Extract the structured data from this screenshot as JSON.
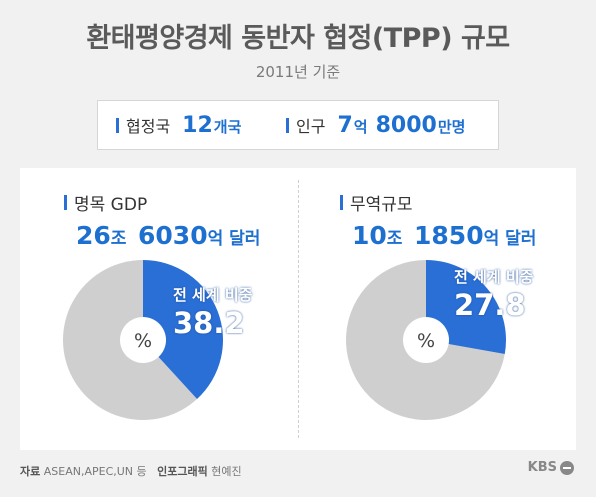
{
  "title": "환태평양경제 동반자 협정(TPP) 규모",
  "subtitle": "2011년 기준",
  "summary": {
    "members_label": "협정국",
    "members_value": "12",
    "members_unit": "개국",
    "population_label": "인구",
    "population_value1": "7",
    "population_unit1": "억",
    "population_value2": "8000",
    "population_unit2": "만명"
  },
  "footer": {
    "source_label": "자료",
    "source_value": "ASEAN,APEC,UN 등",
    "graphic_label": "인포그래픽",
    "graphic_value": "현예진"
  },
  "logo": "KBS",
  "colors": {
    "accent": "#1d6fd0",
    "share": "#2a6fd6",
    "rest": "#cfcfcf"
  },
  "chart_data": [
    {
      "type": "pie",
      "title": "명목 GDP",
      "value_num1": "26",
      "value_unit1": "조",
      "value_num2": "6030",
      "value_unit2": "억 달러",
      "share_caption": "전 세계 비중",
      "share_percent": 38.2,
      "share_text": "38.2",
      "center_label": "%",
      "slices": [
        {
          "label": "전 세계 비중",
          "value": 38.2
        },
        {
          "label": "",
          "value": 61.8
        }
      ]
    },
    {
      "type": "pie",
      "title": "무역규모",
      "value_num1": "10",
      "value_unit1": "조",
      "value_num2": "1850",
      "value_unit2": "억 달러",
      "share_caption": "전 세계 비중",
      "share_percent": 27.8,
      "share_text": "27.8",
      "center_label": "%",
      "slices": [
        {
          "label": "전 세계 비중",
          "value": 27.8
        },
        {
          "label": "",
          "value": 72.2
        }
      ]
    }
  ]
}
